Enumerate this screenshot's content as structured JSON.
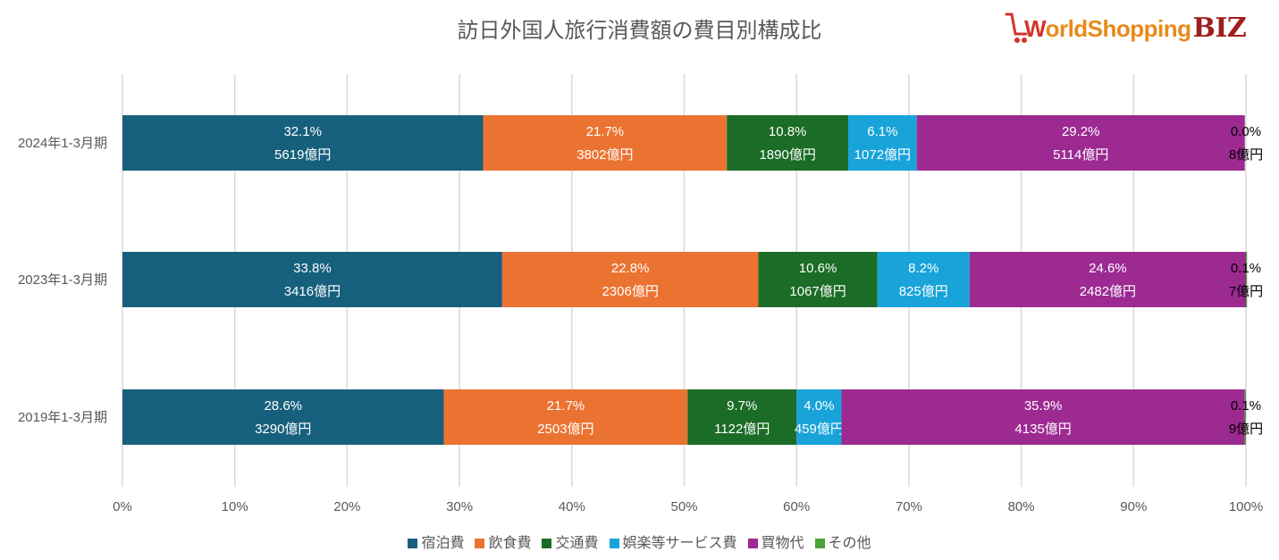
{
  "chart_data": {
    "type": "bar",
    "orientation": "horizontal",
    "stacked": "percent",
    "title": "訪日外国人旅行消費額の費目別構成比",
    "categories": [
      "2024年1-3月期",
      "2023年1-3月期",
      "2019年1-3月期"
    ],
    "series": [
      {
        "name": "宿泊費",
        "color": "#17607d",
        "values": [
          32.1,
          33.8,
          28.6
        ],
        "labels": [
          "32.1%",
          "33.8%",
          "28.6%"
        ],
        "amounts": [
          "5619億円",
          "3416億円",
          "3290億円"
        ]
      },
      {
        "name": "飲食費",
        "color": "#eb7331",
        "values": [
          21.7,
          22.8,
          21.7
        ],
        "labels": [
          "21.7%",
          "22.8%",
          "21.7%"
        ],
        "amounts": [
          "3802億円",
          "2306億円",
          "2503億円"
        ]
      },
      {
        "name": "交通費",
        "color": "#1b6c26",
        "values": [
          10.8,
          10.6,
          9.7
        ],
        "labels": [
          "10.8%",
          "10.6%",
          "9.7%"
        ],
        "amounts": [
          "1890億円",
          "1067億円",
          "1122億円"
        ]
      },
      {
        "name": "娯楽等サービス費",
        "color": "#18a3d9",
        "values": [
          6.1,
          8.2,
          4.0
        ],
        "labels": [
          "6.1%",
          "8.2%",
          "4.0%"
        ],
        "amounts": [
          "1072億円",
          "825億円",
          "459億円"
        ]
      },
      {
        "name": "買物代",
        "color": "#9c2a91",
        "values": [
          29.2,
          24.6,
          35.9
        ],
        "labels": [
          "29.2%",
          "24.6%",
          "35.9%"
        ],
        "amounts": [
          "5114億円",
          "2482億円",
          "4135億円"
        ]
      },
      {
        "name": "その他",
        "color": "#4aa338",
        "values": [
          0.0,
          0.1,
          0.1
        ],
        "labels": [
          "0.0%",
          "0.1%",
          "0.1%"
        ],
        "amounts": [
          "8億円",
          "7億円",
          "9億円"
        ]
      }
    ],
    "xlim": [
      0,
      100
    ],
    "xticks": [
      "0%",
      "10%",
      "20%",
      "30%",
      "40%",
      "50%",
      "60%",
      "70%",
      "80%",
      "90%",
      "100%"
    ],
    "grid": true,
    "legend": "bottom"
  },
  "logo": {
    "w": "W",
    "rest": "orldShopping",
    "biz": "BIZ"
  },
  "colors": {
    "grid": "#d9d9d9",
    "axis_text": "#595959",
    "label_light": "#ffffff",
    "label_dark": "#000000"
  }
}
